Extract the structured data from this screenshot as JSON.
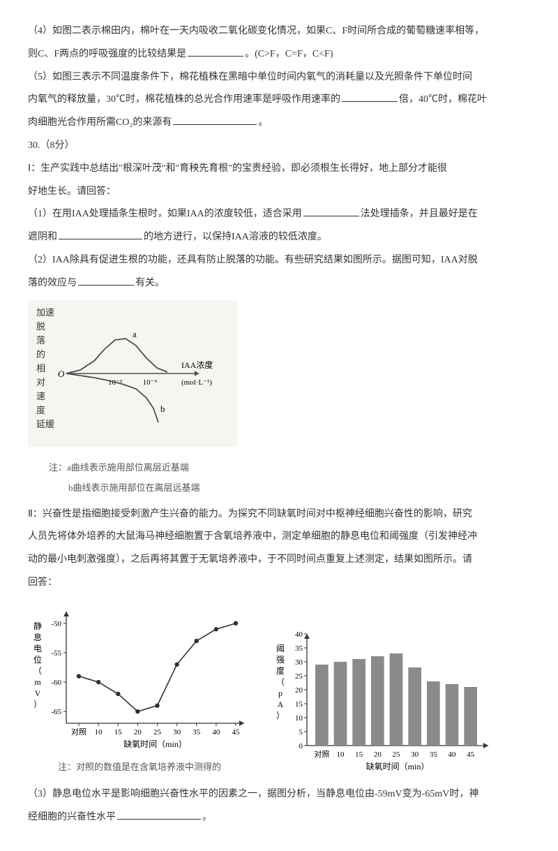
{
  "colors": {
    "text": "#333333",
    "accent": "#c0504d",
    "figure_line": "#4d4d4d",
    "bar_fill": "#8a8a8a",
    "bg": "#ffffff"
  },
  "paragraphs": {
    "p4a": "（4）如图二表示棉田内，棉叶在一天内吸收二氧化碳变化情况，如果C、F时间所合成的葡萄糖速率相等，",
    "p4b_pre": "则C、F两点的呼吸强度的比较结果是",
    "p4b_suf": "。(C>F，C=F，C<F)",
    "p5a": "（5）如图三表示不同温度条件下，棉花植株在黑暗中单位时间内氧气的消耗量以及光照条件下单位时间",
    "p5b_pre": "内氧气的释放量，30℃时，棉花植株的总光合作用速率是呼吸作用速率的",
    "p5b_mid": "倍，40℃时，棉花叶",
    "p5c_pre": "肉细胞光合作用所需CO₂的来源有",
    "p5c_suf": "。",
    "q30": "30.（8分）",
    "q30_1a": "Ⅰ：生产实践中总结出\"根深叶茂\"和\"育秧先育根\"的宝贵经验，即必须根生长得好，地上部分才能很",
    "q30_1b": "好地生长。请回答：",
    "q30_2a_pre": "（1）在用IAA处理插条生根时，如果IAA的浓度较低，适合采用",
    "q30_2a_suf": "法处理插条，并且最好是在",
    "q30_2b_pre": "遮阴和",
    "q30_2b_suf": "的地方进行，以保持IAA溶液的较低浓度。",
    "q30_3a": "（2）IAA除具有促进生根的功能，还具有防止脱落的功能。有些研究结果如图所示。据图可知，IAA对脱",
    "q30_3b_pre": "落的效应与",
    "q30_3b_suf": "有关。",
    "fig1_caption1": "注：a曲线表示施用部位离层近基端",
    "fig1_caption2": "b曲线表示施用部位在离层远基端",
    "q30_II_a": "Ⅱ：兴奋性是指细胞接受刺激产生兴奋的能力。为探究不同缺氧时间对中枢神经细胞兴奋性的影响，研究",
    "q30_II_b": "人员先将体外培养的大鼠海马神经细胞置于含氧培养液中，测定单细胞的静息电位和阈强度（引发神经冲",
    "q30_II_c": "动的最小电刺激强度），之后再将其置于无氧培养液中，于不同时间点重复上述测定，结果如图所示。请",
    "q30_II_d": "回答：",
    "fig2_caption": "注：对照的数值是在含氧培养液中测得的",
    "q30_4a": "（3）静息电位水平是影响细胞兴奋性水平的因素之一，据图分析，当静息电位由-59mV变为-65mV时，神",
    "q30_4b_pre": "经细胞的兴奋性水平",
    "q30_4b_suf": "。"
  },
  "figure1": {
    "type": "line",
    "y_label_lines": [
      "加速",
      "脱",
      "落",
      "的",
      "相",
      "对",
      "速",
      "度",
      "延缓"
    ],
    "x_label": "IAA浓度",
    "x_unit": "(mol·L⁻¹)",
    "x_ticks": [
      "10⁻³",
      "10⁻⁵"
    ],
    "origin_label": "O",
    "curve_a": [
      [
        0,
        0
      ],
      [
        20,
        5
      ],
      [
        40,
        18
      ],
      [
        55,
        35
      ],
      [
        70,
        48
      ],
      [
        85,
        50
      ],
      [
        100,
        40
      ],
      [
        115,
        22
      ],
      [
        130,
        8
      ],
      [
        145,
        2
      ]
    ],
    "curve_b": [
      [
        0,
        0
      ],
      [
        20,
        -3
      ],
      [
        40,
        -6
      ],
      [
        60,
        -10
      ],
      [
        80,
        -15
      ],
      [
        100,
        -22
      ],
      [
        115,
        -35
      ],
      [
        125,
        -50
      ],
      [
        132,
        -70
      ]
    ],
    "label_a": "a",
    "label_b": "b",
    "line_color": "#4d4d4d",
    "bg": "#f5f5f2"
  },
  "figure2_left": {
    "type": "line-marker",
    "y_label": "静息电位（mV）",
    "x_label": "缺氧时间（min）",
    "y_ticks": [
      -50,
      -55,
      -60,
      -65
    ],
    "y_range": [
      -67,
      -48
    ],
    "x_categories": [
      "对照",
      "10",
      "15",
      "20",
      "25",
      "30",
      "35",
      "40",
      "45"
    ],
    "values": [
      -59,
      -60,
      -62,
      -65,
      -64,
      -57,
      -53,
      -51,
      -50
    ],
    "marker_color": "#2f2f2f",
    "line_color": "#2f2f2f",
    "bg": "#ffffff",
    "fontsize": 11
  },
  "figure2_right": {
    "type": "bar",
    "y_label": "阈强度（pA）",
    "x_label": "缺氧时间（min）",
    "y_ticks": [
      0,
      5,
      10,
      15,
      20,
      25,
      30,
      35,
      40
    ],
    "y_range": [
      0,
      40
    ],
    "x_categories": [
      "对照",
      "10",
      "15",
      "20",
      "25",
      "30",
      "35",
      "40",
      "45"
    ],
    "values": [
      29,
      30,
      31,
      32,
      33,
      28,
      23,
      22,
      21
    ],
    "bar_color": "#8a8a8a",
    "bg": "#ffffff",
    "fontsize": 11
  }
}
